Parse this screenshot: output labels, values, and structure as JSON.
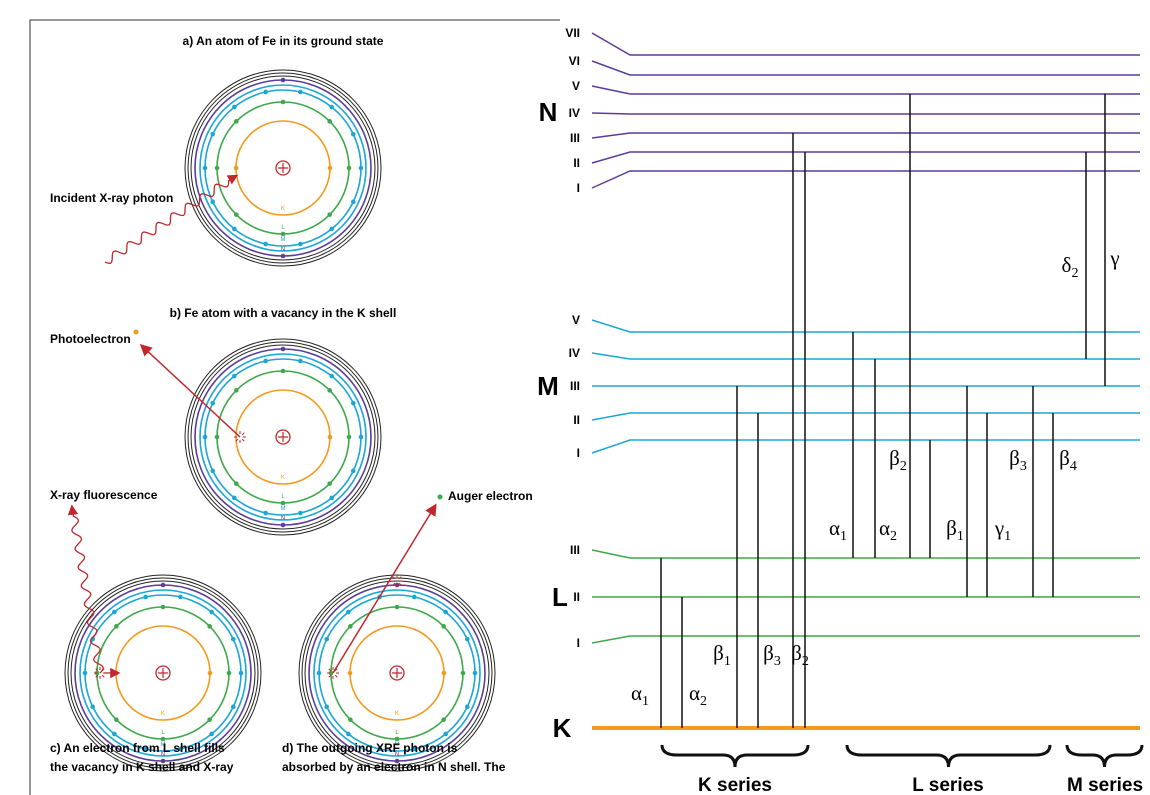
{
  "panels": [
    {
      "caption": [
        "a) An atom of Fe in its ground state"
      ]
    },
    {
      "caption": [
        "b) Fe atom with a vacancy in the K shell"
      ]
    },
    {
      "caption": [
        "c) An electron from L shell fills",
        "the vacancy in K shell and X-ray"
      ]
    },
    {
      "caption": [
        "d) The outgoing XRF photon is",
        "absorbed by an electron in N shell. The"
      ]
    }
  ],
  "labels": {
    "incident": "Incident X-ray photon",
    "photoelectron": "Photoelectron",
    "fluorescence": "X-ray fluorescence",
    "auger": "Auger electron"
  },
  "atom_shell_labels": [
    "K",
    "L",
    "M",
    "N"
  ],
  "levels": [
    {
      "shell": "N",
      "sublevels": [
        "VII",
        "VI",
        "V",
        "IV",
        "III",
        "II",
        "I"
      ]
    },
    {
      "shell": "M",
      "sublevels": [
        "V",
        "IV",
        "III",
        "II",
        "I"
      ]
    },
    {
      "shell": "L",
      "sublevels": [
        "III",
        "II",
        "I"
      ]
    },
    {
      "shell": "K",
      "sublevels": []
    }
  ],
  "transitions": [
    {
      "symbol": "α",
      "sub": "1"
    },
    {
      "symbol": "α",
      "sub": "2"
    },
    {
      "symbol": "β",
      "sub": "1"
    },
    {
      "symbol": "β",
      "sub": "3"
    },
    {
      "symbol": "β",
      "sub": "2"
    },
    {
      "symbol": "α",
      "sub": "1"
    },
    {
      "symbol": "α",
      "sub": "2"
    },
    {
      "symbol": "β",
      "sub": "2"
    },
    {
      "symbol": "β",
      "sub": "1"
    },
    {
      "symbol": "γ",
      "sub": "1"
    },
    {
      "symbol": "β",
      "sub": "3"
    },
    {
      "symbol": "β",
      "sub": "4"
    },
    {
      "symbol": "δ",
      "sub": "2"
    },
    {
      "symbol": "γ",
      "sub": ""
    }
  ],
  "series": [
    "K series",
    "L series",
    "M series"
  ]
}
